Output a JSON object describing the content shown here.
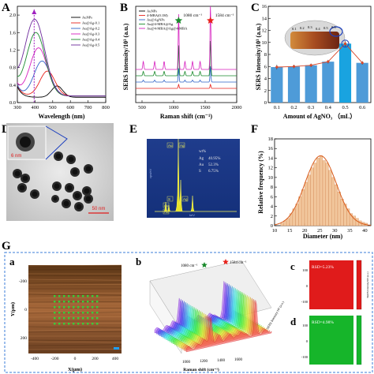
{
  "figure": {
    "panel_letters": {
      "A": "A",
      "B": "B",
      "C": "C",
      "D": "D",
      "E": "E",
      "F": "F",
      "G": "G",
      "a": "a",
      "b": "b",
      "c": "c",
      "d": "d"
    }
  },
  "chart_data": [
    {
      "id": "A",
      "type": "line",
      "xlabel": "Wavelength (nm)",
      "ylabel": "",
      "xlim": [
        300,
        800
      ],
      "ylim": [
        0,
        2.2
      ],
      "xticks": [
        300,
        400,
        500,
        600,
        700,
        800
      ],
      "yticks": [
        0.0,
        0.4,
        0.8,
        1.2,
        1.6,
        2.0
      ],
      "peak_marker_x": 395,
      "grid": false,
      "legend_position": "top-right",
      "series": [
        {
          "name": "AuNPs",
          "color": "#000000",
          "peak": 0.38,
          "peak_x": 525,
          "width": 45,
          "base": 0.12
        },
        {
          "name": "Au@Ag-0.1",
          "color": "#e8231c",
          "peak": 0.72,
          "peak_x": 470,
          "width": 60,
          "base": 0.15
        },
        {
          "name": "Au@Ag-0.2",
          "color": "#2f62c8",
          "peak": 0.95,
          "peak_x": 440,
          "width": 65,
          "base": 0.15
        },
        {
          "name": "Au@Ag-0.3",
          "color": "#d61fbf",
          "peak": 1.25,
          "peak_x": 420,
          "width": 70,
          "base": 0.15
        },
        {
          "name": "Au@Ag-0.4",
          "color": "#1a8a2c",
          "peak": 1.6,
          "peak_x": 405,
          "width": 75,
          "base": 0.15
        },
        {
          "name": "Au@Ag-0.5",
          "color": "#6d2a9c",
          "peak": 1.9,
          "peak_x": 398,
          "width": 80,
          "base": 0.15
        }
      ]
    },
    {
      "id": "B",
      "type": "line",
      "xlabel": "Raman shift (cm⁻¹)",
      "ylabel": "SERS Intensity/10³ (a.u.)",
      "xlim": [
        400,
        2000
      ],
      "xticks": [
        500,
        1000,
        1500,
        2000
      ],
      "peaks": [
        {
          "x": 1080,
          "label": "1080 cm⁻¹"
        },
        {
          "x": 1584,
          "label": "1584 cm⁻¹"
        }
      ],
      "series": [
        {
          "name": "AuNPs",
          "color": "#000000"
        },
        {
          "name": "4-MBA(0.1M)",
          "color": "#e8231c"
        },
        {
          "name": "Au@AgNPs",
          "color": "#2f62c8"
        },
        {
          "name": "Au@4-MBA@Ag",
          "color": "#1a8a2c"
        },
        {
          "name": "Au@4-MBA@Ag@4-MBA",
          "color": "#d61fbf"
        }
      ]
    },
    {
      "id": "C",
      "type": "bar",
      "xlabel": "Amount of AgNO₃ （mL）",
      "ylabel": "SERS Intensity/10³ (a.u.)",
      "categories": [
        "0.1",
        "0.2",
        "0.3",
        "0.4",
        "0.5",
        "0.6"
      ],
      "values": [
        5.9,
        6.0,
        6.2,
        6.8,
        9.8,
        6.6
      ],
      "errors": [
        0.4,
        0.3,
        0.3,
        0.3,
        0.5,
        0.3
      ],
      "ylim": [
        0,
        16
      ],
      "yticks": [
        0,
        2,
        4,
        6,
        8,
        10,
        12,
        14,
        16
      ],
      "inset_labels": [
        "0.1",
        "0.2",
        "0.3",
        "0.4",
        "0.5",
        "0.6"
      ]
    },
    {
      "id": "E",
      "type": "bar",
      "xlabel": "keV",
      "ylabel": "cps/eV",
      "element_labels": [
        "Au",
        "Ag",
        "S",
        "Au",
        "Ag",
        "Au"
      ],
      "table_header": "wt%",
      "table": [
        {
          "el": "Ag",
          "wt": "40.95%"
        },
        {
          "el": "Au",
          "wt": "52.3%"
        },
        {
          "el": "S",
          "wt": "6.75%"
        }
      ]
    },
    {
      "id": "F",
      "type": "bar",
      "xlabel": "Diameter (nm)",
      "ylabel": "Relative frequency (%)",
      "xlim": [
        10,
        42
      ],
      "ylim": [
        0,
        18
      ],
      "xticks": [
        10,
        15,
        20,
        25,
        30,
        35,
        40
      ],
      "yticks": [
        0,
        2,
        4,
        6,
        8,
        10,
        12,
        14,
        16,
        18
      ],
      "bin_starts": [
        12,
        13,
        14,
        15,
        16,
        17,
        18,
        19,
        20,
        21,
        22,
        23,
        24,
        25,
        26,
        27,
        28,
        29,
        30,
        31,
        32,
        33,
        34,
        35,
        36,
        37,
        38,
        39,
        40
      ],
      "values": [
        0.5,
        1.0,
        1.5,
        2.5,
        3.5,
        4.5,
        6.0,
        7.5,
        9.0,
        10.5,
        12.0,
        13.0,
        14.0,
        14.5,
        13.5,
        13.0,
        11.5,
        10.0,
        8.5,
        7.0,
        5.5,
        4.5,
        3.5,
        2.5,
        2.0,
        1.5,
        1.0,
        0.7,
        0.5
      ],
      "fit_mean": 25.3,
      "fit_sd": 5.2,
      "fit_peak": 14.5
    },
    {
      "id": "Ga",
      "type": "scatter",
      "xlabel": "X(μm)",
      "ylabel": "Y(μm)",
      "xticks": [
        -400,
        -200,
        0,
        200,
        400
      ],
      "yticks": [
        -200,
        0,
        200
      ],
      "grid_points": "10x6"
    },
    {
      "id": "Gb",
      "type": "area",
      "xlabel": "Raman shift (cm⁻¹)",
      "ylabel": "SERS Intensity/10³ (a.u.)",
      "xticks": [
        1000,
        1200,
        1400,
        1600
      ],
      "peaks": [
        {
          "x": 1080,
          "label": "1080 cm⁻¹"
        },
        {
          "x": 1584,
          "label": "1584 cm⁻¹"
        }
      ],
      "spectra_count": 20
    },
    {
      "id": "Gc",
      "type": "heatmap",
      "label": "RSD=5.23%",
      "yticks": [
        100,
        0,
        -100
      ],
      "color": "#e01b1b"
    },
    {
      "id": "Gd",
      "type": "heatmap",
      "label": "RSD=4.98%",
      "yticks": [
        100,
        0,
        -100
      ],
      "color": "#16b52a"
    }
  ],
  "labels": {
    "D": {
      "inset_scale": "6 nm",
      "scale": "50 nm"
    },
    "C": {
      "x_axis": "Amount of AgNO₃ （mL）"
    },
    "Gc": {
      "cbar": "SERS Intensity/10³ (a.u.)"
    }
  }
}
